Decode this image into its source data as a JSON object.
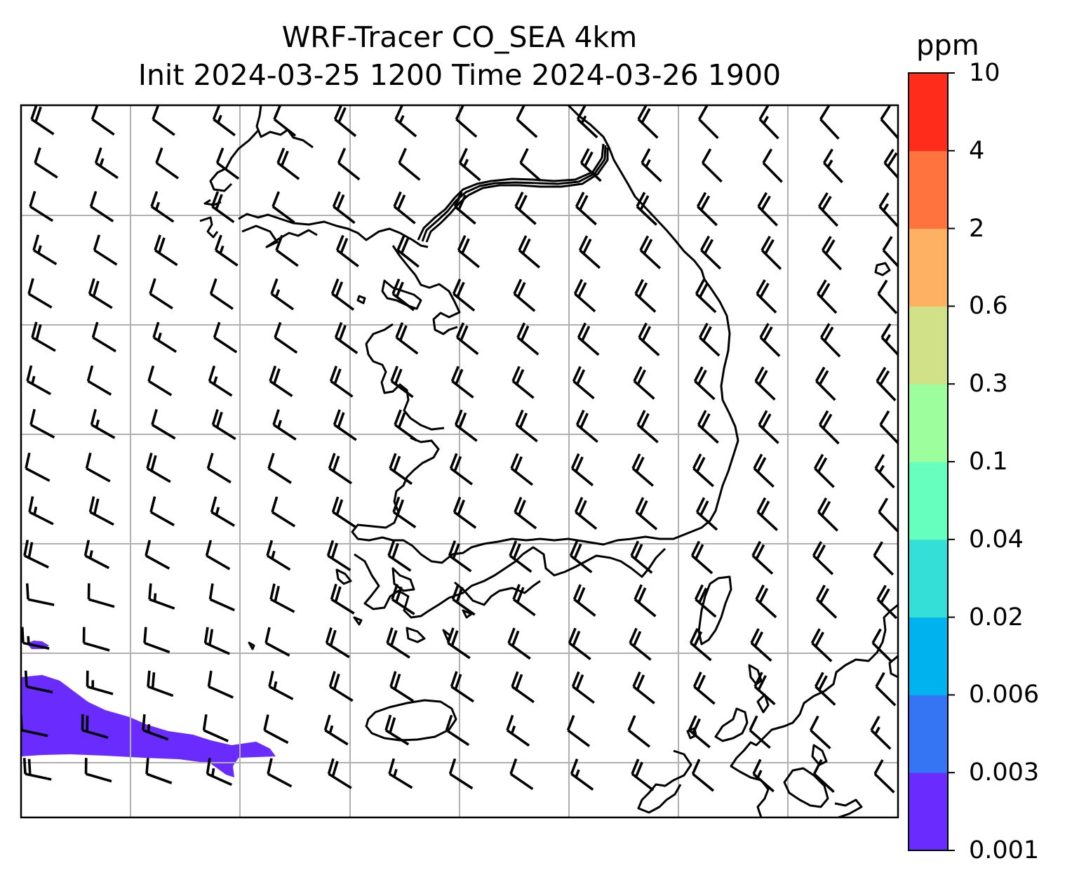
{
  "title": {
    "line1": "WRF-Tracer CO_SEA 4km",
    "line2": "Init 2024-03-25 1200 Time 2024-03-26 1900"
  },
  "colorbar": {
    "unit": "ppm",
    "levels": [
      "0.001",
      "0.003",
      "0.006",
      "0.02",
      "0.04",
      "0.1",
      "0.3",
      "0.6",
      "2",
      "4",
      "10"
    ],
    "colors": [
      "#6a2bff",
      "#3575f3",
      "#00b3ee",
      "#33dfd6",
      "#66ffbe",
      "#9cfe9c",
      "#d1e187",
      "#ffb163",
      "#ff733f",
      "#ff2c1b"
    ]
  },
  "map": {
    "grid": true,
    "wind_barbs": {
      "direction": "from north-west",
      "barb_style": "half and full feathers"
    },
    "tracer_plume": {
      "level_bin": "0.001-0.003",
      "color": "#6a2bff",
      "location": "lower-left corner"
    }
  }
}
